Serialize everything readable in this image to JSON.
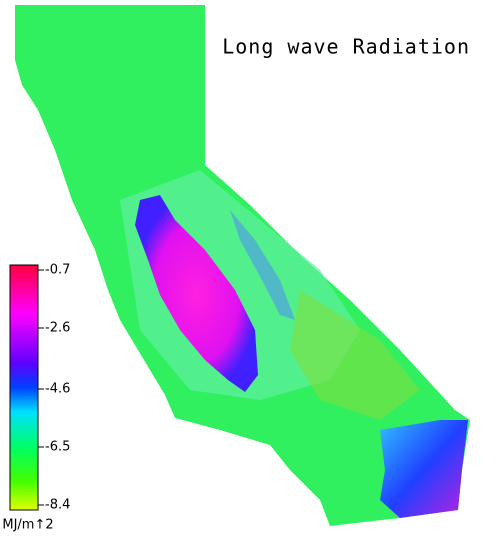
{
  "title": "Long wave Radiation",
  "colorbar": {
    "ticks": [
      -0.7,
      -2.6,
      -4.6,
      -6.5,
      -8.4
    ],
    "unit": "MJ/m↑2"
  }
}
